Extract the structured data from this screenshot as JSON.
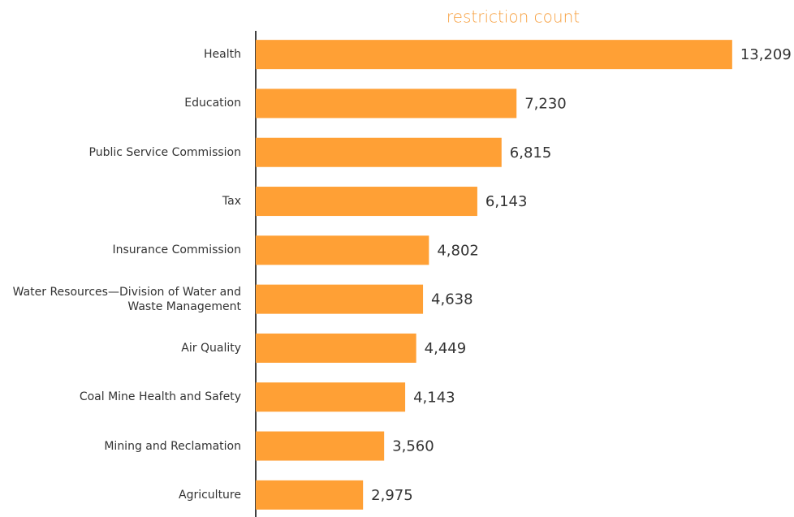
{
  "chart_data": {
    "type": "bar",
    "orientation": "horizontal",
    "title": "restriction count",
    "categories": [
      "Health",
      "Education",
      "Public Service Commission",
      "Tax",
      "Insurance Commission",
      "Water Resources—Division of Water and Waste Management",
      "Air Quality",
      "Coal Mine Health and Safety",
      "Mining and Reclamation",
      "Agriculture"
    ],
    "values": [
      13209,
      7230,
      6815,
      6143,
      4802,
      4638,
      4449,
      4143,
      3560,
      2975
    ],
    "value_labels": [
      "13,209",
      "7,230",
      "6,815",
      "6,143",
      "4,802",
      "4,638",
      "4,449",
      "4,143",
      "3,560",
      "2,975"
    ],
    "color": "#ffa035",
    "xlim": [
      0,
      14000
    ]
  }
}
